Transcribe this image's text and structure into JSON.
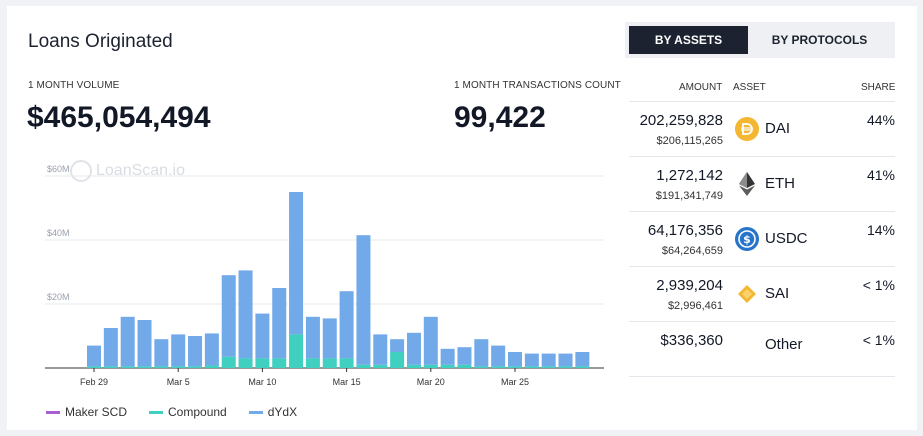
{
  "title": "Loans Originated",
  "volume": {
    "label": "1 MONTH VOLUME",
    "value": "$465,054,494"
  },
  "transactions": {
    "label": "1 MONTH TRANSACTIONS COUNT",
    "value": "99,422"
  },
  "watermark": "LoanScan.io",
  "tabs": [
    {
      "label": "BY ASSETS",
      "active": true
    },
    {
      "label": "BY PROTOCOLS",
      "active": false
    }
  ],
  "table": {
    "headers": {
      "amount": "AMOUNT",
      "asset": "ASSET",
      "share": "SHARE"
    },
    "rows": [
      {
        "amount": "202,259,828",
        "usd": "$206,115,265",
        "asset": "DAI",
        "share": "44%",
        "icon": "dai-icon",
        "color": "#f4b731"
      },
      {
        "amount": "1,272,142",
        "usd": "$191,341,749",
        "asset": "ETH",
        "share": "41%",
        "icon": "eth-icon",
        "color": "#343434"
      },
      {
        "amount": "64,176,356",
        "usd": "$64,264,659",
        "asset": "USDC",
        "share": "14%",
        "icon": "usdc-icon",
        "color": "#2775ca"
      },
      {
        "amount": "2,939,204",
        "usd": "$2,996,461",
        "asset": "SAI",
        "share": "< 1%",
        "icon": "sai-icon",
        "color": "#f4b731"
      },
      {
        "amount": "$336,360",
        "usd": "",
        "asset": "Other",
        "share": "< 1%",
        "icon": "",
        "color": ""
      }
    ]
  },
  "chart_data": {
    "type": "bar",
    "stacked": true,
    "ylim": [
      0,
      60
    ],
    "y_ticks": [
      {
        "value": 20,
        "label": "$20M"
      },
      {
        "value": 40,
        "label": "$40M"
      },
      {
        "value": 60,
        "label": "$60M"
      }
    ],
    "x_tick_labels": [
      {
        "index": 0,
        "label": "Feb 29"
      },
      {
        "index": 5,
        "label": "Mar 5"
      },
      {
        "index": 10,
        "label": "Mar 10"
      },
      {
        "index": 15,
        "label": "Mar 15"
      },
      {
        "index": 20,
        "label": "Mar 20"
      },
      {
        "index": 25,
        "label": "Mar 25"
      }
    ],
    "grid": true,
    "legend_position": "bottom-left",
    "series": [
      {
        "name": "Maker SCD",
        "color": "#a75fd1",
        "values": [
          0,
          0,
          0,
          0,
          0,
          0,
          0,
          0,
          0,
          0,
          0,
          0,
          0,
          0,
          0,
          0,
          0,
          0,
          0,
          0,
          0,
          0,
          0,
          0,
          0,
          0,
          0,
          0,
          0,
          0
        ]
      },
      {
        "name": "Compound",
        "color": "#3fd0c0",
        "values": [
          0.5,
          0.5,
          0.5,
          0.5,
          0.5,
          0.5,
          0.5,
          0.8,
          3.5,
          3,
          3,
          3,
          10.5,
          3,
          3,
          3,
          1,
          1,
          5,
          1,
          1,
          1,
          1,
          0.5,
          0.5,
          0.5,
          0.5,
          0.5,
          0.5,
          0.5
        ]
      },
      {
        "name": "dYdX",
        "color": "#72a9e8",
        "values": [
          6.5,
          12,
          15.5,
          14.5,
          8.5,
          10,
          9.5,
          10,
          25.5,
          27.5,
          14,
          22,
          44.5,
          13,
          12.5,
          21,
          40.5,
          9.5,
          4,
          10,
          15,
          5,
          5.5,
          8.5,
          6.5,
          4.5,
          4,
          4,
          4,
          4.5
        ]
      }
    ]
  }
}
